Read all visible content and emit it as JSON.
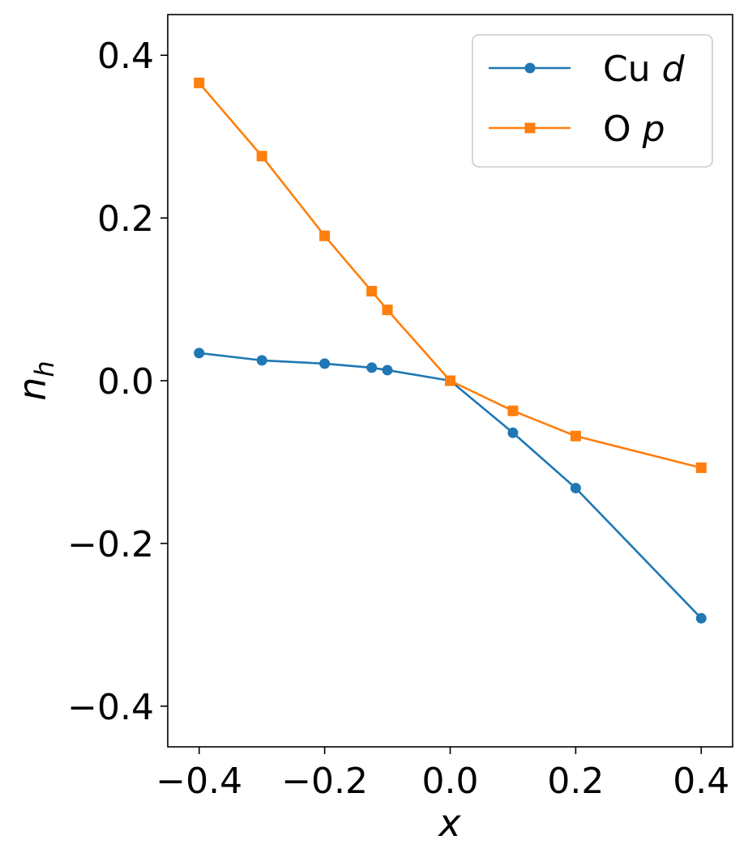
{
  "chart_data": {
    "type": "line",
    "title": "",
    "xlabel": "x",
    "ylabel": "n_h",
    "ylabel_main": "n",
    "ylabel_sub": "h",
    "xlim": [
      -0.45,
      0.45
    ],
    "ylim": [
      -0.45,
      0.45
    ],
    "x_ticks": [
      -0.4,
      -0.2,
      0.0,
      0.2,
      0.4
    ],
    "x_tick_labels": [
      "−0.4",
      "−0.2",
      "0.0",
      "0.2",
      "0.4"
    ],
    "y_ticks": [
      -0.4,
      -0.2,
      0.0,
      0.2,
      0.4
    ],
    "y_tick_labels": [
      "−0.4",
      "−0.2",
      "0.0",
      "0.2",
      "0.4"
    ],
    "grid": false,
    "legend_position": "top-right",
    "x": [
      -0.4,
      -0.3,
      -0.2,
      -0.125,
      -0.1,
      0.0,
      0.1,
      0.2,
      0.4
    ],
    "series": [
      {
        "name": "Cu d",
        "label_main": "Cu ",
        "label_italic": "d",
        "marker": "circle",
        "color": "#1f77b4",
        "values": [
          0.034,
          0.025,
          0.021,
          0.016,
          0.013,
          0.0,
          -0.064,
          -0.132,
          -0.292
        ]
      },
      {
        "name": "O p",
        "label_main": "O ",
        "label_italic": "p",
        "marker": "square",
        "color": "#ff7f0e",
        "values": [
          0.366,
          0.276,
          0.178,
          0.11,
          0.087,
          0.0,
          -0.037,
          -0.068,
          -0.107
        ]
      }
    ]
  }
}
